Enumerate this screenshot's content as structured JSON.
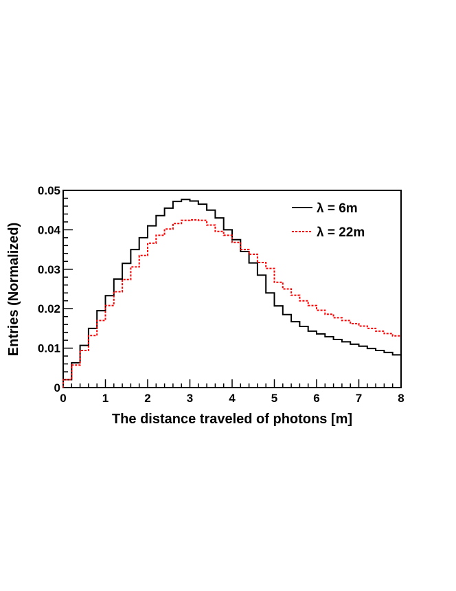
{
  "chart_data": {
    "type": "line",
    "title": "",
    "xlabel": "The distance traveled of photons [m]",
    "ylabel": "Entries (Normalized)",
    "xlim": [
      0,
      8
    ],
    "ylim": [
      0,
      0.05
    ],
    "xticks": [
      0,
      1,
      2,
      3,
      4,
      5,
      6,
      7,
      8
    ],
    "xtick_labels": [
      "0",
      "1",
      "2",
      "3",
      "4",
      "5",
      "6",
      "7",
      "8"
    ],
    "yticks": [
      0,
      0.01,
      0.02,
      0.03,
      0.04,
      0.05
    ],
    "ytick_labels": [
      "0",
      "0.01",
      "0.02",
      "0.03",
      "0.04",
      "0.05"
    ],
    "grid": false,
    "legend_position": "top-right",
    "bin_edges": [
      0,
      0.2,
      0.4,
      0.6,
      0.8,
      1.0,
      1.2,
      1.4,
      1.6,
      1.8,
      2.0,
      2.2,
      2.4,
      2.6,
      2.8,
      3.0,
      3.2,
      3.4,
      3.6,
      3.8,
      4.0,
      4.2,
      4.4,
      4.6,
      4.8,
      5.0,
      5.2,
      5.4,
      5.6,
      5.8,
      6.0,
      6.2,
      6.4,
      6.6,
      6.8,
      7.0,
      7.2,
      7.4,
      7.6,
      7.8,
      8.0
    ],
    "series": [
      {
        "name": "λ = 6m",
        "color": "#000000",
        "style": "solid",
        "values": [
          0.002,
          0.0063,
          0.0107,
          0.015,
          0.0195,
          0.0233,
          0.0275,
          0.0315,
          0.035,
          0.038,
          0.041,
          0.0436,
          0.0455,
          0.0472,
          0.0477,
          0.0473,
          0.0465,
          0.045,
          0.043,
          0.04,
          0.0375,
          0.0345,
          0.0316,
          0.0285,
          0.024,
          0.0207,
          0.0185,
          0.0167,
          0.0155,
          0.0143,
          0.0136,
          0.0129,
          0.0122,
          0.0116,
          0.011,
          0.0105,
          0.0099,
          0.0094,
          0.0089,
          0.0083
        ]
      },
      {
        "name": "λ = 22m",
        "color": "#ff0000",
        "style": "dotted",
        "values": [
          0.002,
          0.0057,
          0.0094,
          0.0132,
          0.017,
          0.0208,
          0.0243,
          0.0274,
          0.0306,
          0.0335,
          0.0366,
          0.0386,
          0.0402,
          0.0416,
          0.0424,
          0.0425,
          0.0424,
          0.0412,
          0.0396,
          0.0386,
          0.0368,
          0.035,
          0.0338,
          0.0317,
          0.0302,
          0.0267,
          0.025,
          0.0234,
          0.022,
          0.0208,
          0.0196,
          0.0186,
          0.0177,
          0.017,
          0.0162,
          0.0156,
          0.015,
          0.0143,
          0.0137,
          0.0131
        ]
      }
    ]
  }
}
